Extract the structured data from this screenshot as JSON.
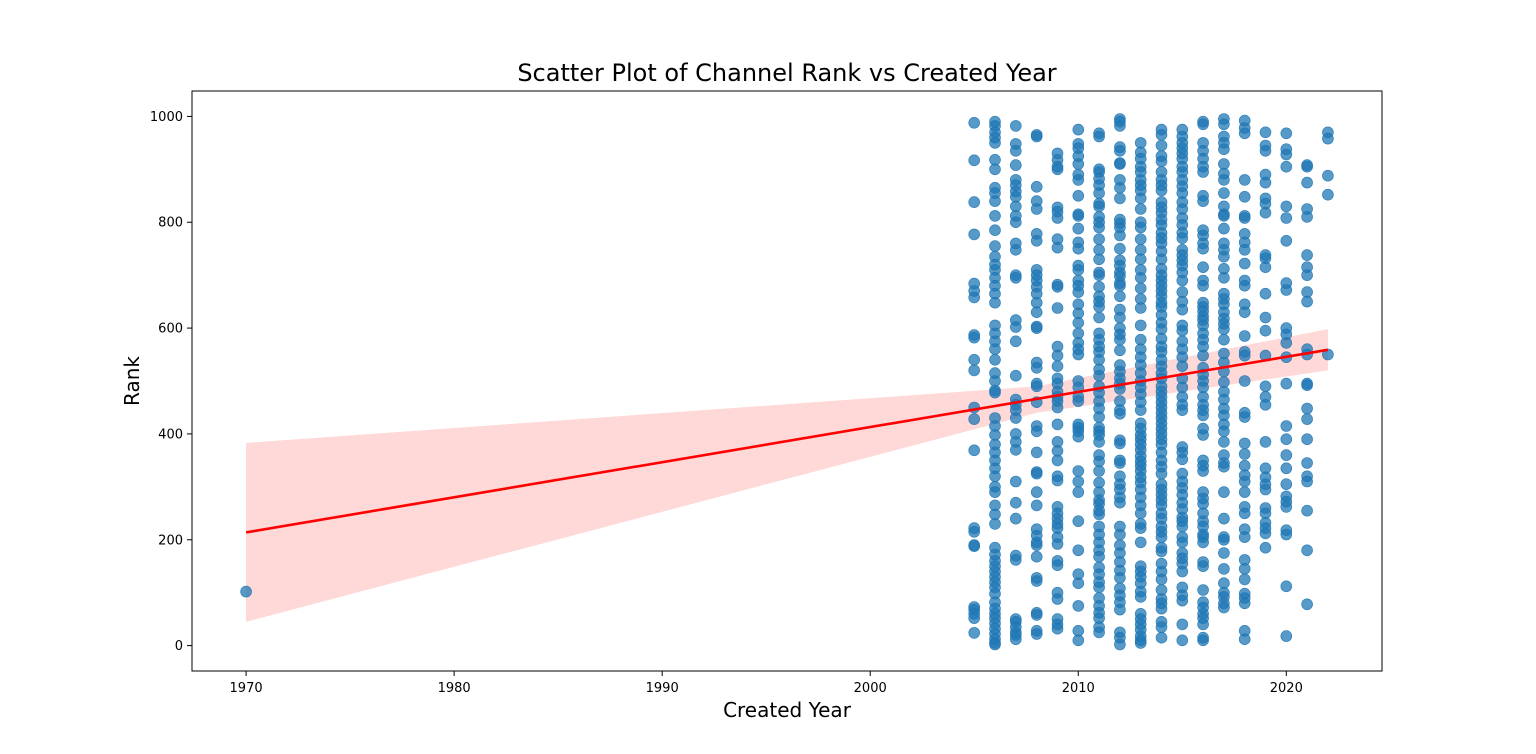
{
  "chart_data": {
    "type": "scatter",
    "title": "Scatter Plot of Channel Rank vs Created Year",
    "xlabel": "Created Year",
    "ylabel": "Rank",
    "xlim": [
      1967.4,
      2024.6
    ],
    "ylim": [
      -48,
      1048
    ],
    "x_ticks": [
      1970,
      1980,
      1990,
      2000,
      2010,
      2020
    ],
    "y_ticks": [
      0,
      200,
      400,
      600,
      800,
      1000
    ],
    "grid": false,
    "legend": "none",
    "point_color": "#1f77b4",
    "regression": {
      "color": "#ff0000",
      "band_color": "#ff9999",
      "x": [
        1970,
        2022
      ],
      "y": [
        214,
        559
      ],
      "ci_low": [
        45,
        520
      ],
      "ci_high": [
        383,
        598
      ],
      "ci_mid": {
        "x": 2008,
        "low": 440,
        "high": 490
      }
    },
    "points": [
      {
        "x": 1970,
        "y": 102
      },
      {
        "x": 2005,
        "ranks": [
          988,
          917,
          838,
          777,
          684,
          670,
          658,
          587,
          582,
          540,
          520,
          450,
          428,
          369,
          222,
          215,
          190,
          188,
          73,
          68,
          60,
          52,
          24
        ]
      },
      {
        "x": 2006,
        "ranks": [
          990,
          982,
          970,
          960,
          950,
          918,
          900,
          865,
          855,
          840,
          812,
          785,
          755,
          735,
          720,
          710,
          695,
          680,
          665,
          648,
          605,
          590,
          575,
          560,
          540,
          515,
          500,
          482,
          478,
          430,
          415,
          398,
          380,
          365,
          350,
          335,
          320,
          300,
          290,
          265,
          248,
          230,
          185,
          172,
          160,
          150,
          140,
          130,
          120,
          110,
          98,
          82,
          70,
          60,
          52,
          42,
          32,
          22,
          12,
          5,
          2
        ]
      },
      {
        "x": 2007,
        "ranks": [
          982,
          948,
          935,
          908,
          880,
          870,
          858,
          848,
          830,
          812,
          800,
          760,
          748,
          700,
          695,
          615,
          602,
          575,
          510,
          465,
          455,
          445,
          430,
          400,
          385,
          370,
          310,
          270,
          240,
          170,
          162,
          50,
          45,
          35,
          25,
          20,
          12
        ]
      },
      {
        "x": 2008,
        "ranks": [
          965,
          962,
          867,
          840,
          825,
          778,
          765,
          710,
          700,
          690,
          678,
          665,
          648,
          630,
          603,
          600,
          535,
          525,
          495,
          490,
          460,
          415,
          405,
          365,
          328,
          325,
          290,
          265,
          220,
          208,
          195,
          190,
          168,
          128,
          122,
          62,
          58,
          28,
          22
        ]
      },
      {
        "x": 2009,
        "ranks": [
          930,
          918,
          905,
          900,
          828,
          820,
          808,
          768,
          752,
          682,
          678,
          638,
          565,
          548,
          528,
          505,
          495,
          480,
          470,
          462,
          450,
          418,
          385,
          368,
          350,
          320,
          312,
          262,
          250,
          240,
          230,
          222,
          205,
          192,
          160,
          152,
          100,
          88,
          50,
          40,
          32
        ]
      },
      {
        "x": 2010,
        "ranks": [
          975,
          948,
          940,
          925,
          910,
          890,
          880,
          850,
          815,
          812,
          788,
          762,
          750,
          718,
          710,
          690,
          680,
          668,
          645,
          628,
          610,
          590,
          572,
          560,
          550,
          500,
          488,
          470,
          462,
          418,
          412,
          405,
          395,
          330,
          310,
          290,
          235,
          180,
          135,
          118,
          75,
          28,
          10
        ]
      },
      {
        "x": 2011,
        "ranks": [
          968,
          962,
          900,
          895,
          882,
          870,
          855,
          835,
          830,
          810,
          800,
          790,
          768,
          748,
          730,
          705,
          700,
          678,
          660,
          650,
          640,
          620,
          590,
          578,
          565,
          555,
          540,
          522,
          510,
          490,
          478,
          462,
          448,
          432,
          412,
          405,
          398,
          385,
          360,
          348,
          330,
          308,
          290,
          275,
          268,
          255,
          248,
          225,
          210,
          195,
          180,
          168,
          148,
          135,
          120,
          110,
          90,
          75,
          62,
          52,
          35,
          25
        ]
      },
      {
        "x": 2012,
        "ranks": [
          995,
          990,
          982,
          942,
          935,
          912,
          910,
          880,
          865,
          845,
          805,
          798,
          790,
          775,
          750,
          728,
          718,
          705,
          698,
          685,
          680,
          660,
          635,
          620,
          600,
          588,
          578,
          558,
          530,
          518,
          505,
          495,
          485,
          462,
          445,
          438,
          388,
          382,
          350,
          345,
          320,
          305,
          295,
          280,
          270,
          225,
          210,
          190,
          175,
          158,
          142,
          128,
          108,
          95,
          82,
          68,
          25,
          15,
          2
        ]
      },
      {
        "x": 2013,
        "ranks": [
          950,
          932,
          920,
          905,
          895,
          880,
          870,
          860,
          845,
          825,
          800,
          790,
          768,
          748,
          730,
          710,
          695,
          675,
          655,
          638,
          605,
          578,
          560,
          545,
          530,
          515,
          500,
          488,
          475,
          460,
          445,
          420,
          410,
          398,
          390,
          380,
          370,
          358,
          348,
          340,
          330,
          318,
          308,
          295,
          280,
          265,
          250,
          230,
          222,
          195,
          150,
          140,
          130,
          118,
          102,
          92,
          60,
          50,
          40,
          30,
          18,
          10,
          5
        ]
      },
      {
        "x": 2014,
        "ranks": [
          975,
          965,
          945,
          925,
          915,
          895,
          880,
          870,
          860,
          838,
          828,
          818,
          805,
          795,
          780,
          770,
          760,
          745,
          730,
          712,
          700,
          690,
          680,
          670,
          660,
          648,
          640,
          625,
          610,
          598,
          580,
          565,
          555,
          540,
          528,
          515,
          505,
          490,
          480,
          470,
          460,
          450,
          440,
          430,
          420,
          410,
          400,
          390,
          380,
          365,
          350,
          338,
          325,
          305,
          295,
          285,
          275,
          265,
          250,
          240,
          225,
          215,
          205,
          185,
          178,
          155,
          140,
          125,
          105,
          88,
          80,
          70,
          45,
          35,
          15
        ]
      },
      {
        "x": 2015,
        "ranks": [
          975,
          962,
          950,
          940,
          930,
          920,
          905,
          895,
          880,
          868,
          855,
          838,
          825,
          808,
          795,
          780,
          770,
          748,
          738,
          728,
          718,
          705,
          690,
          668,
          650,
          635,
          605,
          595,
          575,
          560,
          545,
          528,
          505,
          488,
          470,
          455,
          445,
          375,
          365,
          352,
          325,
          310,
          298,
          285,
          270,
          258,
          242,
          235,
          225,
          205,
          195,
          175,
          165,
          155,
          140,
          110,
          95,
          85,
          40,
          10
        ]
      },
      {
        "x": 2016,
        "ranks": [
          990,
          985,
          950,
          935,
          920,
          905,
          895,
          850,
          840,
          785,
          775,
          760,
          750,
          715,
          690,
          680,
          648,
          640,
          632,
          622,
          615,
          605,
          590,
          578,
          565,
          548,
          525,
          512,
          500,
          488,
          470,
          455,
          445,
          435,
          410,
          398,
          350,
          340,
          330,
          290,
          278,
          268,
          250,
          235,
          225,
          210,
          205,
          195,
          158,
          150,
          105,
          82,
          72,
          60,
          52,
          40,
          15,
          10
        ]
      },
      {
        "x": 2017,
        "ranks": [
          995,
          985,
          962,
          950,
          938,
          910,
          892,
          880,
          855,
          830,
          815,
          812,
          788,
          760,
          748,
          735,
          712,
          695,
          665,
          655,
          645,
          630,
          618,
          608,
          598,
          578,
          552,
          535,
          518,
          498,
          480,
          465,
          448,
          435,
          418,
          405,
          385,
          360,
          345,
          338,
          290,
          240,
          205,
          200,
          175,
          145,
          118,
          100,
          92,
          80,
          72
        ]
      },
      {
        "x": 2018,
        "ranks": [
          992,
          978,
          968,
          880,
          848,
          812,
          808,
          778,
          762,
          748,
          722,
          690,
          680,
          645,
          630,
          585,
          555,
          548,
          500,
          440,
          432,
          382,
          362,
          340,
          322,
          310,
          290,
          262,
          250,
          220,
          205,
          162,
          145,
          125,
          98,
          90,
          80,
          28,
          12
        ]
      },
      {
        "x": 2019,
        "ranks": [
          970,
          945,
          935,
          890,
          875,
          845,
          835,
          818,
          738,
          732,
          715,
          665,
          620,
          595,
          548,
          490,
          470,
          455,
          385,
          335,
          318,
          305,
          295,
          260,
          250,
          232,
          222,
          212,
          185
        ]
      },
      {
        "x": 2020,
        "ranks": [
          968,
          938,
          928,
          905,
          830,
          808,
          765,
          685,
          672,
          600,
          588,
          572,
          545,
          495,
          415,
          390,
          360,
          335,
          305,
          282,
          272,
          262,
          218,
          210,
          112,
          18
        ]
      },
      {
        "x": 2021,
        "ranks": [
          908,
          905,
          875,
          825,
          810,
          738,
          715,
          700,
          668,
          650,
          560,
          550,
          495,
          492,
          448,
          428,
          390,
          345,
          320,
          310,
          255,
          180,
          78
        ]
      },
      {
        "x": 2022,
        "ranks": [
          970,
          958,
          888,
          852,
          550
        ]
      }
    ]
  }
}
